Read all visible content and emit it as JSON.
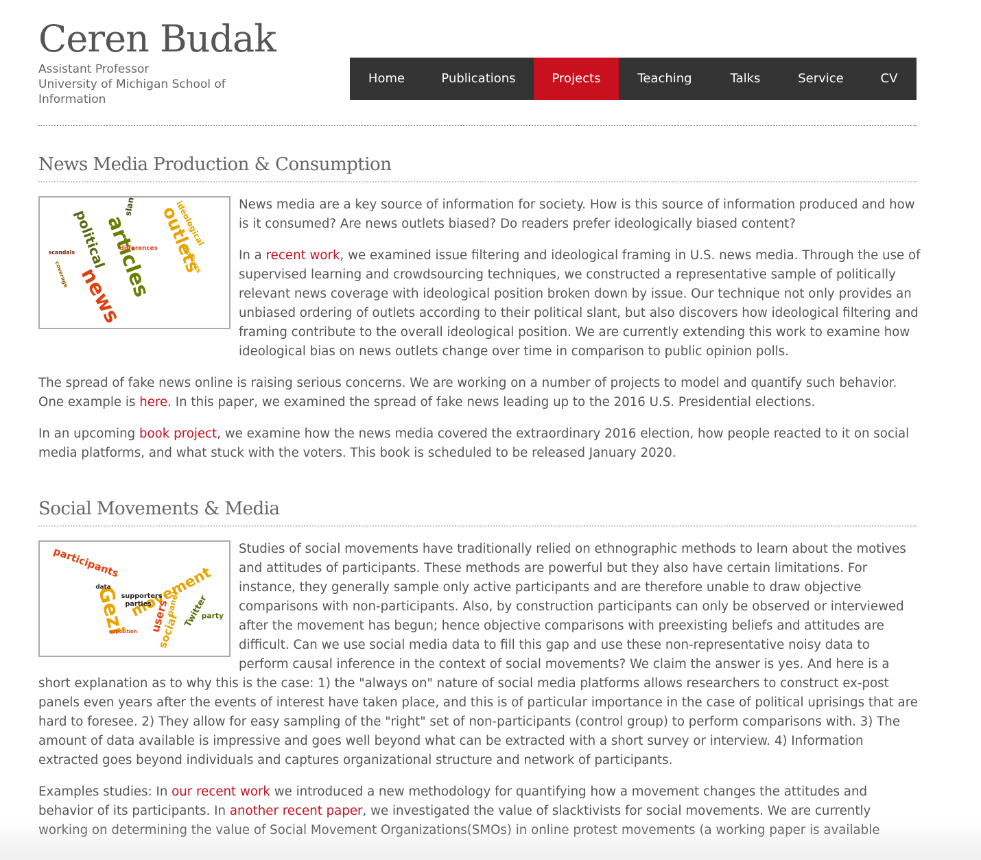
{
  "header": {
    "name": "Ceren Budak",
    "subtitle_lines": [
      "Assistant Professor",
      "University of Michigan School of",
      "Information"
    ]
  },
  "nav": {
    "items": [
      {
        "label": "Home"
      },
      {
        "label": "Publications"
      },
      {
        "label": "Projects",
        "active": true
      },
      {
        "label": "Teaching"
      },
      {
        "label": "Talks"
      },
      {
        "label": "Service"
      },
      {
        "label": "CV"
      }
    ]
  },
  "colors": {
    "accent": "#c8101f",
    "nav_bg": "#333333",
    "text": "#555555"
  },
  "sections": [
    {
      "title": "News Media Production & Consumption",
      "image_icon": "word-cloud-news-image",
      "cloud_words": [
        "political",
        "articles",
        "outlets",
        "ideological",
        "news",
        "slant",
        "differences",
        "workers",
        "scandals",
        "coverage"
      ],
      "p1": "News media are a key source of information for society. How is this source of information produced and how is it consumed? Are news outlets biased? Do readers prefer ideologically biased content?",
      "p2_pre": "In a ",
      "p2_link": "recent work",
      "p2_post": ", we examined issue filtering and ideological framing in U.S. news media. Through the use of supervised learning and crowdsourcing techniques, we constructed a representative sample of politically relevant news coverage with ideological position broken down by issue. Our technique not only provides an unbiased ordering of outlets according to their political slant, but also discovers how ideological filtering and framing contribute to the overall ideological position. We are currently extending this work to examine how ideological bias on news outlets change over time in comparison to public opinion polls.",
      "p3_pre": "The spread of fake news online is raising serious concerns. We are working on a number of projects to model and quantify such behavior. One example is ",
      "p3_link": "here",
      "p3_post": ". In this paper, we examined the spread of fake news leading up to the 2016 U.S. Presidential elections.",
      "p4_pre": "In an upcoming ",
      "p4_link": "book project",
      "p4_post": ", we examine how the news media covered the extraordinary 2016 election, how people reacted to it on social media platforms, and what stuck with the voters. This book is scheduled to be released January 2020."
    },
    {
      "title": "Social Movements & Media",
      "image_icon": "word-cloud-social-image",
      "cloud_words": [
        "participants",
        "Gezi",
        "movement",
        "supporters",
        "parties",
        "users",
        "panel",
        "Twitter",
        "party",
        "social",
        "opposition",
        "data"
      ],
      "p1": "Studies of social movements have traditionally relied on ethnographic methods to learn about the motives and attitudes of participants. These methods are powerful but they also have certain limitations. For instance, they generally sample only active participants and are therefore unable to draw objective comparisons with non-participants. Also, by construction participants can only be observed or interviewed after the movement has begun; hence objective comparisons with preexisting beliefs and attitudes are difficult. Can we use social media data to fill this gap and use these non-representative noisy data to perform causal inference in the context of social movements? We claim the answer is yes. And here is a short explanation as to why this is the case: 1) the \"always on\" nature of social media platforms allows researchers to construct ex-post panels even years after the events of interest have taken place, and this is of particular importance in the case of political uprisings that are hard to foresee. 2) They allow for easy sampling of the \"right\" set of non-participants (control group) to perform comparisons with. 3) The amount of data available is impressive and goes well beyond what can be extracted with a short survey or interview. 4) Information extracted goes beyond individuals and captures organizational structure and network of participants.",
      "p2_pre": "Examples studies: In ",
      "p2_link": "our recent work",
      "p2_mid": " we introduced a new methodology for quantifying how a movement changes the attitudes and behavior of its participants. In ",
      "p2_link2": "another recent paper",
      "p2_post": ", we investigated the value of slacktivists for social movements. We are currently working on determining the value of Social Movement Organizations(SMOs) in online protest movements (a working paper is available"
    }
  ]
}
